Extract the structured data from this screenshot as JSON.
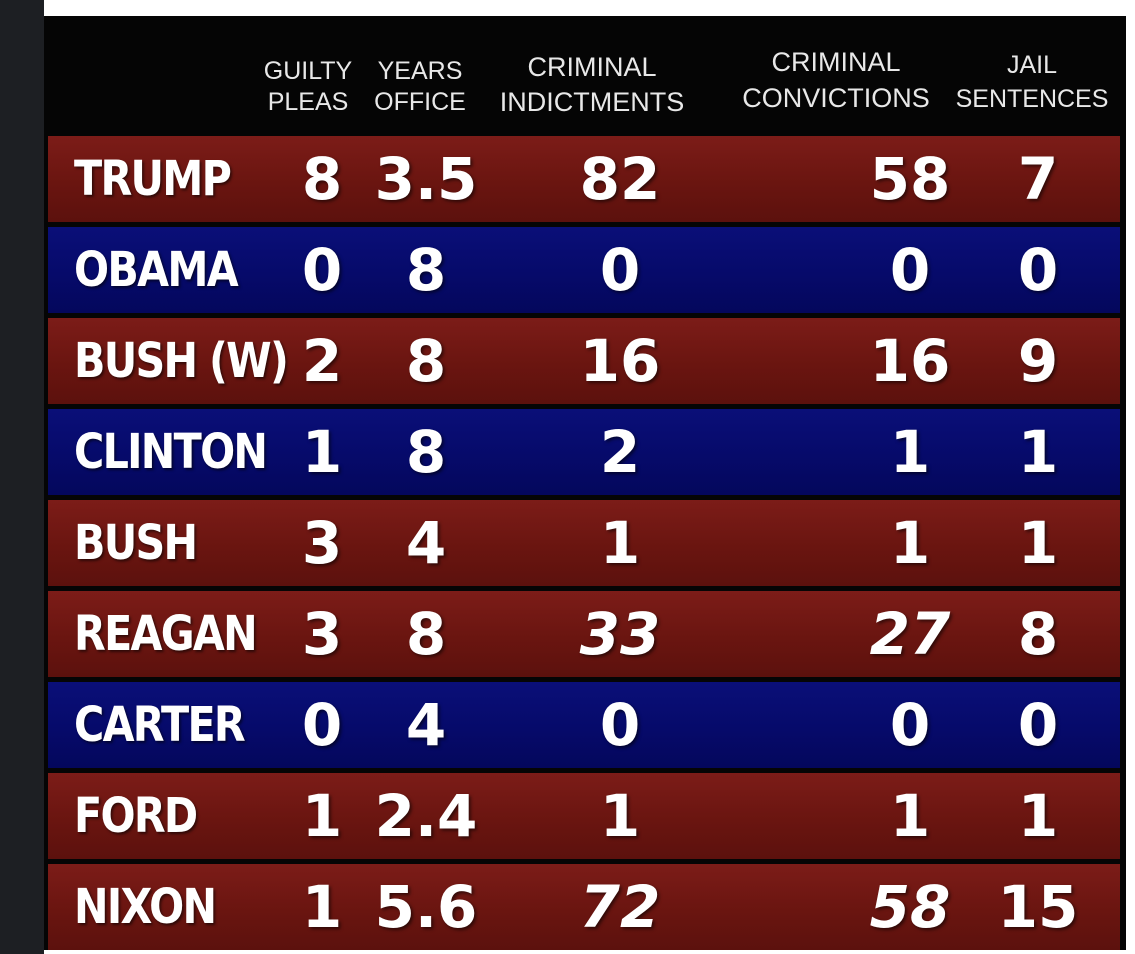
{
  "chart_data": {
    "type": "table",
    "columns": [
      {
        "key": "guilty_pleas",
        "label": [
          "GUILTY",
          "PLEAS"
        ]
      },
      {
        "key": "years_office",
        "label": [
          "YEARS",
          "OFFICE"
        ]
      },
      {
        "key": "criminal_indictments",
        "label": [
          "CRIMINAL",
          "INDICTMENTS"
        ]
      },
      {
        "key": "criminal_convictions",
        "label": [
          "CRIMINAL",
          "CONVICTIONS"
        ]
      },
      {
        "key": "jail_sentences",
        "label": [
          "JAIL",
          "SENTENCES"
        ]
      }
    ],
    "rows": [
      {
        "name": "TRUMP",
        "party_color": "#6e1712",
        "values": [
          "8",
          "3.5",
          "82",
          "58",
          "7"
        ],
        "italic": [
          false,
          false,
          false,
          false,
          false
        ]
      },
      {
        "name": "OBAMA",
        "party_color": "#070c6e",
        "values": [
          "0",
          "8",
          "0",
          "0",
          "0"
        ],
        "italic": [
          false,
          false,
          false,
          false,
          false
        ]
      },
      {
        "name": "BUSH (W)",
        "party_color": "#6e1712",
        "values": [
          "2",
          "8",
          "16",
          "16",
          "9"
        ],
        "italic": [
          false,
          false,
          false,
          false,
          false
        ]
      },
      {
        "name": "CLINTON",
        "party_color": "#070c6e",
        "values": [
          "1",
          "8",
          "2",
          "1",
          "1"
        ],
        "italic": [
          false,
          false,
          false,
          false,
          false
        ]
      },
      {
        "name": "BUSH",
        "party_color": "#6e1712",
        "values": [
          "3",
          "4",
          "1",
          "1",
          "1"
        ],
        "italic": [
          false,
          false,
          false,
          false,
          false
        ]
      },
      {
        "name": "REAGAN",
        "party_color": "#6e1712",
        "values": [
          "3",
          "8",
          "33",
          "27",
          "8"
        ],
        "italic": [
          false,
          false,
          true,
          true,
          false
        ]
      },
      {
        "name": "CARTER",
        "party_color": "#070c6e",
        "values": [
          "0",
          "4",
          "0",
          "0",
          "0"
        ],
        "italic": [
          false,
          false,
          false,
          false,
          false
        ]
      },
      {
        "name": "FORD",
        "party_color": "#6e1712",
        "values": [
          "1",
          "2.4",
          "1",
          "1",
          "1"
        ],
        "italic": [
          false,
          false,
          false,
          false,
          false
        ]
      },
      {
        "name": "NIXON",
        "party_color": "#6e1712",
        "values": [
          "1",
          "5.6",
          "72",
          "58",
          "15"
        ],
        "italic": [
          false,
          false,
          true,
          true,
          false
        ]
      }
    ]
  }
}
